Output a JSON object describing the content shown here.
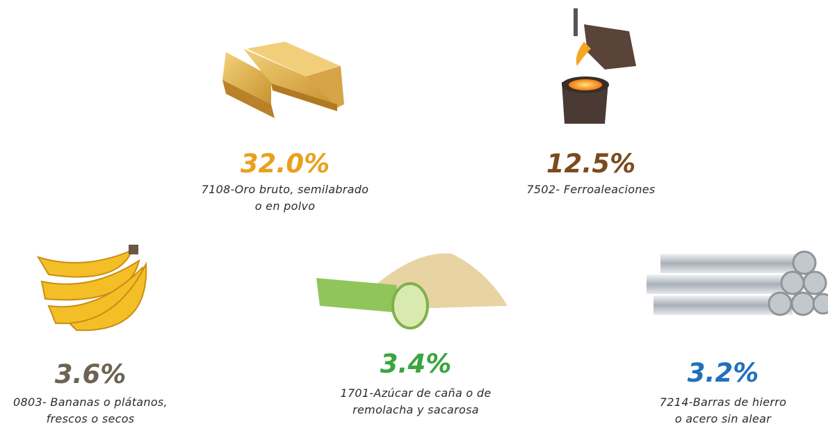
{
  "items": [
    {
      "percent": "32.0%",
      "color": "#e9a11d",
      "description": [
        "7108-Oro bruto, semilabrado",
        "o en polvo"
      ]
    },
    {
      "percent": "12.5%",
      "color": "#7b4b1c",
      "description": [
        "7502- Ferroaleaciones"
      ]
    },
    {
      "percent": "3.6%",
      "color": "#6d6253",
      "description": [
        "0803- Bananas o plátanos,",
        "frescos o secos"
      ]
    },
    {
      "percent": "3.4%",
      "color": "#3ba53f",
      "description": [
        "1701-Azúcar de caña o de",
        "remolacha y sacarosa"
      ]
    },
    {
      "percent": "3.2%",
      "color": "#2170be",
      "description": [
        "7214-Barras de hierro",
        "o acero sin alear"
      ]
    }
  ]
}
